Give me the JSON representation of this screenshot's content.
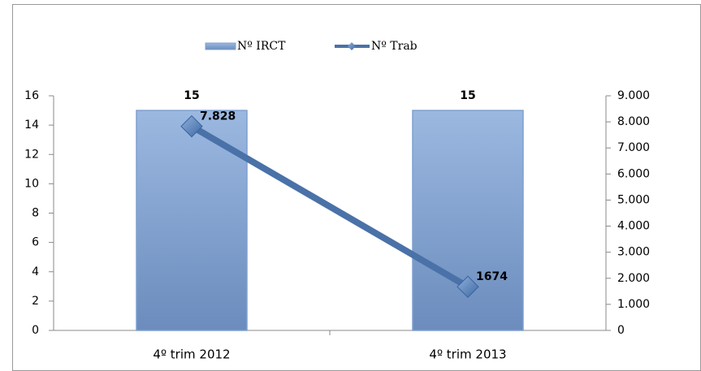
{
  "chart_data": {
    "type": "bar",
    "categories": [
      "4º trim 2012",
      "4º trim 2013"
    ],
    "series": [
      {
        "name": "Nº IRCT",
        "type": "bar",
        "color": "#7f9fcf",
        "values": [
          15,
          15
        ]
      },
      {
        "name": "Nº Trab",
        "type": "line",
        "axis": "y2",
        "color": "#4a72a8",
        "values": [
          7828,
          1674
        ],
        "value_labels": [
          "7.828",
          "1674"
        ]
      }
    ],
    "ylim": [
      0,
      16
    ],
    "yticks": [
      0,
      2,
      4,
      6,
      8,
      10,
      12,
      14,
      16
    ],
    "y2lim": [
      0,
      9000
    ],
    "y2ticks": [
      0,
      {
        "value": 1000,
        "label": "1.000"
      },
      {
        "value": 2000,
        "label": "2.000"
      },
      {
        "value": 3000,
        "label": "3.000"
      },
      {
        "value": 4000,
        "label": "4.000"
      },
      {
        "value": 5000,
        "label": "5.000"
      },
      {
        "value": 6000,
        "label": "6.000"
      },
      {
        "value": 7000,
        "label": "7.000"
      },
      {
        "value": 8000,
        "label": "8.000"
      },
      {
        "value": 9000,
        "label": "9.000"
      }
    ],
    "legend": "top"
  }
}
